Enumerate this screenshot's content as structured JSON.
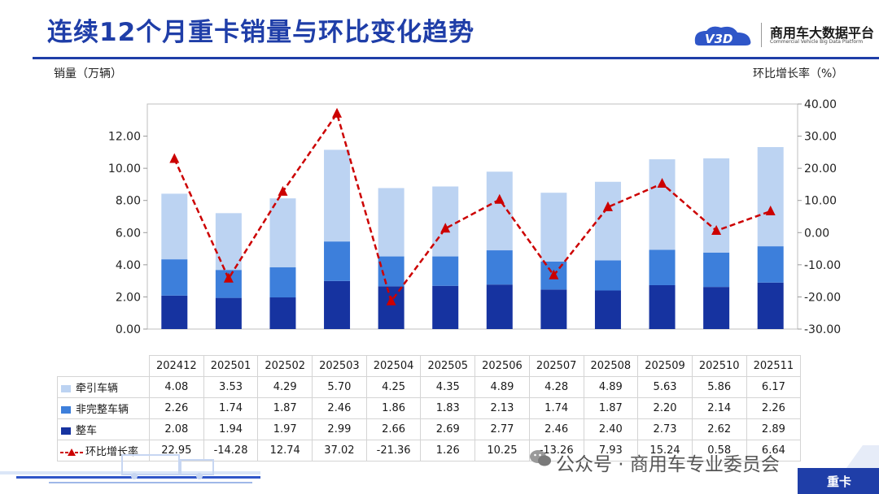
{
  "title": "连续12个月重卡销量与环比变化趋势",
  "logo": {
    "text": "商用车大数据平台",
    "sub": "Commercial Vehicle Big Data Platform",
    "mark": "V3D"
  },
  "watermark": "公众号 · 商用车专业委员会",
  "footer_tag": "重卡",
  "colors": {
    "tractor": "#bcd3f2",
    "incomplete": "#3d7fdb",
    "complete": "#1633a0",
    "mom": "#cc0000",
    "brand": "#1f3ea8"
  },
  "chart_data": {
    "type": "bar",
    "stacked": true,
    "categories": [
      "202412",
      "202501",
      "202502",
      "202503",
      "202504",
      "202505",
      "202506",
      "202507",
      "202508",
      "202509",
      "202510",
      "202511"
    ],
    "ylabel": "销量（万辆）",
    "y2label": "环比增长率（%）",
    "ylim": [
      0,
      14
    ],
    "y2lim": [
      -30,
      40
    ],
    "yticks": [
      "0.00",
      "2.00",
      "4.00",
      "6.00",
      "8.00",
      "10.00",
      "12.00"
    ],
    "y2ticks": [
      "-30.00",
      "-20.00",
      "-10.00",
      "0.00",
      "10.00",
      "20.00",
      "30.00",
      "40.00"
    ],
    "series": [
      {
        "name": "牵引车辆",
        "type": "bar",
        "values": [
          "4.08",
          "3.53",
          "4.29",
          "5.70",
          "4.25",
          "4.35",
          "4.89",
          "4.28",
          "4.89",
          "5.63",
          "5.86",
          "6.17"
        ]
      },
      {
        "name": "非完整车辆",
        "type": "bar",
        "values": [
          "2.26",
          "1.74",
          "1.87",
          "2.46",
          "1.86",
          "1.83",
          "2.13",
          "1.74",
          "1.87",
          "2.20",
          "2.14",
          "2.26"
        ]
      },
      {
        "name": "整车",
        "type": "bar",
        "values": [
          "2.08",
          "1.94",
          "1.97",
          "2.99",
          "2.66",
          "2.69",
          "2.77",
          "2.46",
          "2.40",
          "2.73",
          "2.62",
          "2.89"
        ]
      },
      {
        "name": "环比增长率",
        "type": "line",
        "axis": "right",
        "values": [
          "22.95",
          "-14.28",
          "12.74",
          "37.02",
          "-21.36",
          "1.26",
          "10.25",
          "-13.26",
          "7.93",
          "15.24",
          "0.58",
          "6.64"
        ]
      }
    ],
    "legend": "data-table"
  }
}
